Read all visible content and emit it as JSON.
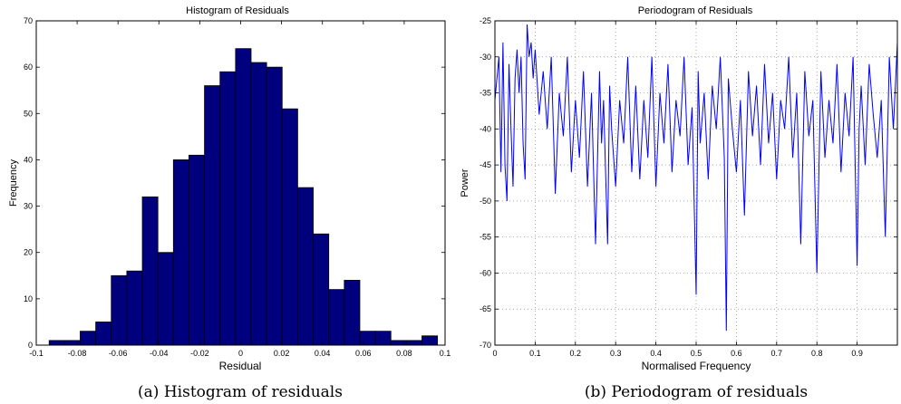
{
  "chart_data": [
    {
      "type": "bar",
      "title": "Histogram of Residuals",
      "xlabel": "Residual",
      "ylabel": "Frequency",
      "caption": "(a) Histogram of residuals",
      "xlim": [
        -0.1,
        0.1
      ],
      "ylim": [
        0,
        70
      ],
      "xticks": [
        -0.1,
        -0.08,
        -0.06,
        -0.04,
        -0.02,
        0,
        0.02,
        0.04,
        0.06,
        0.08,
        0.1
      ],
      "xtick_labels": [
        "-0.1",
        "-0.08",
        "-0.06",
        "-0.04",
        "-0.02",
        "0",
        "0.02",
        "0.04",
        "0.06",
        "0.08",
        "0.1"
      ],
      "yticks": [
        0,
        10,
        20,
        30,
        40,
        50,
        60,
        70
      ],
      "grid": false,
      "bar_color": "#00007f",
      "bin_edges": [
        -0.0937,
        -0.0861,
        -0.0785,
        -0.0709,
        -0.0633,
        -0.0557,
        -0.0481,
        -0.0405,
        -0.0329,
        -0.0253,
        -0.0177,
        -0.0101,
        -0.0025,
        0.0051,
        0.0127,
        0.0203,
        0.0279,
        0.0355,
        0.0431,
        0.0507,
        0.0583,
        0.0659,
        0.0735,
        0.0811,
        0.0887,
        0.0963
      ],
      "values": [
        1,
        1,
        3,
        5,
        15,
        16,
        32,
        20,
        40,
        41,
        56,
        59,
        64,
        61,
        60,
        51,
        34,
        24,
        12,
        14,
        3,
        3,
        1,
        1,
        2
      ]
    },
    {
      "type": "line",
      "title": "Periodogram of Residuals",
      "xlabel": "Normalised Frequency",
      "ylabel": "Power",
      "caption": "(b) Periodogram of residuals",
      "xlim": [
        0,
        1
      ],
      "ylim": [
        -70,
        -25
      ],
      "xticks": [
        0,
        0.1,
        0.2,
        0.3,
        0.4,
        0.5,
        0.6,
        0.7,
        0.8,
        0.9
      ],
      "xtick_labels": [
        "0",
        "0.1",
        "0.2",
        "0.3",
        "0.4",
        "0.5",
        "0.6",
        "0.7",
        "0.8",
        "0.9"
      ],
      "yticks": [
        -70,
        -65,
        -60,
        -55,
        -50,
        -45,
        -40,
        -35,
        -30,
        -25
      ],
      "ytick_labels": [
        "-70",
        "-65",
        "-60",
        "-55",
        "-50",
        "-45",
        "-40",
        "-35",
        "-30",
        "-25"
      ],
      "grid": true,
      "line_color": "#0000ff",
      "series": [
        {
          "x": [
            0,
            0.01,
            0.015,
            0.02,
            0.025,
            0.03,
            0.035,
            0.04,
            0.045,
            0.05,
            0.055,
            0.06,
            0.065,
            0.07,
            0.075,
            0.08,
            0.085,
            0.09,
            0.095,
            0.1,
            0.11,
            0.12,
            0.13,
            0.14,
            0.15,
            0.16,
            0.17,
            0.18,
            0.19,
            0.2,
            0.21,
            0.22,
            0.23,
            0.24,
            0.25,
            0.26,
            0.265,
            0.27,
            0.28,
            0.285,
            0.29,
            0.3,
            0.31,
            0.32,
            0.33,
            0.34,
            0.35,
            0.36,
            0.37,
            0.38,
            0.39,
            0.4,
            0.41,
            0.42,
            0.43,
            0.44,
            0.45,
            0.46,
            0.47,
            0.48,
            0.49,
            0.5,
            0.505,
            0.51,
            0.52,
            0.53,
            0.54,
            0.55,
            0.56,
            0.57,
            0.575,
            0.58,
            0.59,
            0.6,
            0.61,
            0.62,
            0.63,
            0.64,
            0.65,
            0.66,
            0.67,
            0.68,
            0.69,
            0.7,
            0.71,
            0.72,
            0.73,
            0.74,
            0.75,
            0.76,
            0.77,
            0.78,
            0.79,
            0.8,
            0.81,
            0.82,
            0.83,
            0.84,
            0.85,
            0.86,
            0.87,
            0.88,
            0.89,
            0.9,
            0.905,
            0.91,
            0.92,
            0.93,
            0.94,
            0.95,
            0.96,
            0.97,
            0.98,
            0.99,
            1.0
          ],
          "y": [
            -36,
            -30,
            -46,
            -28,
            -45,
            -50,
            -31,
            -40,
            -48,
            -33,
            -29,
            -35,
            -30,
            -42,
            -47,
            -25.5,
            -30,
            -28,
            -33,
            -29,
            -38,
            -32,
            -40,
            -30,
            -49,
            -35,
            -41,
            -30,
            -46,
            -36,
            -44,
            -32,
            -48,
            -35,
            -56,
            -32,
            -42,
            -36,
            -56,
            -34,
            -40,
            -48,
            -36,
            -42,
            -30,
            -46,
            -34,
            -47,
            -36,
            -44,
            -30,
            -48,
            -35,
            -42,
            -31,
            -46,
            -36,
            -41,
            -30,
            -45,
            -37,
            -63,
            -32,
            -42,
            -35,
            -47,
            -34,
            -40,
            -30,
            -44,
            -68,
            -33,
            -40,
            -46,
            -36,
            -52,
            -32,
            -41,
            -34,
            -45,
            -31,
            -42,
            -35,
            -47,
            -36,
            -40,
            -30,
            -44,
            -35,
            -56,
            -32,
            -41,
            -36,
            -60,
            -32,
            -44,
            -36,
            -42,
            -31,
            -46,
            -35,
            -41,
            -30,
            -59,
            -40,
            -34,
            -45,
            -31,
            -38,
            -44,
            -36,
            -55,
            -30,
            -40,
            -28
          ]
        }
      ]
    }
  ]
}
